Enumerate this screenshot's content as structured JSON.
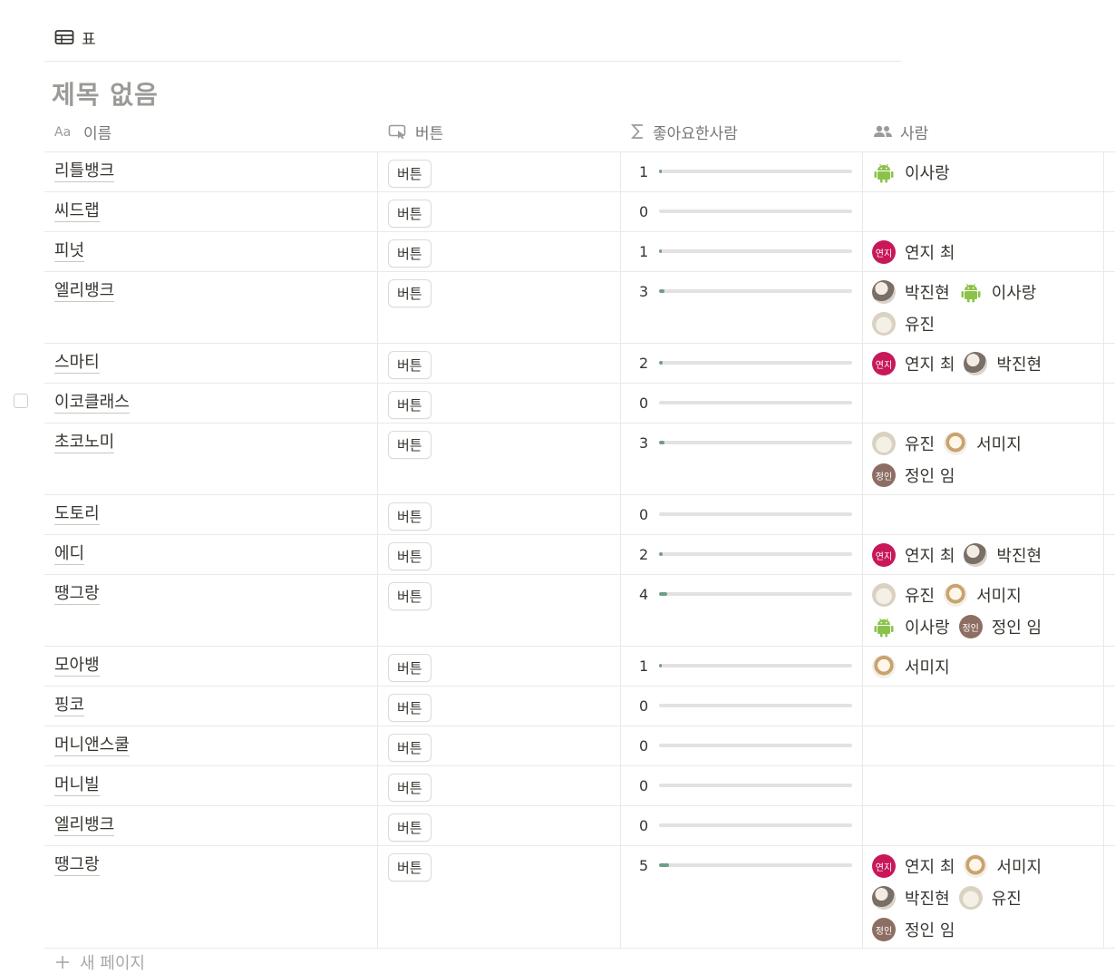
{
  "view": {
    "icon": "table-icon",
    "label": "표"
  },
  "db_title": "제목 없음",
  "columns": [
    {
      "icon": "title-property-icon",
      "label": "이름"
    },
    {
      "icon": "button-property-icon",
      "label": "버튼"
    },
    {
      "icon": "sigma-icon",
      "label": "좋아요한사람"
    },
    {
      "icon": "people-icon",
      "label": "사람"
    }
  ],
  "rows": [
    {
      "name": "리틀뱅크",
      "button": "버튼",
      "count": "1",
      "fill": 0.01,
      "people": [
        {
          "name": "이사랑",
          "avatar": "android"
        }
      ]
    },
    {
      "name": "씨드랩",
      "button": "버튼",
      "count": "0",
      "fill": 0,
      "people": []
    },
    {
      "name": "피넛",
      "button": "버튼",
      "count": "1",
      "fill": 0.01,
      "people": [
        {
          "name": "연지 최",
          "avatar": "choi",
          "badge": "연지"
        }
      ]
    },
    {
      "name": "엘리뱅크",
      "button": "버튼",
      "count": "3",
      "fill": 0.03,
      "people": [
        {
          "name": "박진현",
          "avatar": "park"
        },
        {
          "name": "이사랑",
          "avatar": "android"
        },
        {
          "name": "유진",
          "avatar": "yujin"
        }
      ]
    },
    {
      "name": "스마티",
      "button": "버튼",
      "count": "2",
      "fill": 0.02,
      "people": [
        {
          "name": "연지 최",
          "avatar": "choi",
          "badge": "연지"
        },
        {
          "name": "박진현",
          "avatar": "park"
        }
      ]
    },
    {
      "name": "이코클래스",
      "button": "버튼",
      "count": "0",
      "fill": 0,
      "people": []
    },
    {
      "name": "초코노미",
      "button": "버튼",
      "count": "3",
      "fill": 0.03,
      "people": [
        {
          "name": "유진",
          "avatar": "yujin"
        },
        {
          "name": "서미지",
          "avatar": "seo"
        },
        {
          "name": "정인 임",
          "avatar": "lim",
          "badge": "정인"
        }
      ]
    },
    {
      "name": "도토리",
      "button": "버튼",
      "count": "0",
      "fill": 0,
      "people": []
    },
    {
      "name": "에디",
      "button": "버튼",
      "count": "2",
      "fill": 0.02,
      "people": [
        {
          "name": "연지 최",
          "avatar": "choi",
          "badge": "연지"
        },
        {
          "name": "박진현",
          "avatar": "park"
        }
      ]
    },
    {
      "name": "땡그랑",
      "button": "버튼",
      "count": "4",
      "fill": 0.04,
      "people": [
        {
          "name": "유진",
          "avatar": "yujin"
        },
        {
          "name": "서미지",
          "avatar": "seo"
        },
        {
          "name": "이사랑",
          "avatar": "android"
        },
        {
          "name": "정인 임",
          "avatar": "lim",
          "badge": "정인"
        }
      ]
    },
    {
      "name": "모아뱅",
      "button": "버튼",
      "count": "1",
      "fill": 0.01,
      "people": [
        {
          "name": "서미지",
          "avatar": "seo"
        }
      ]
    },
    {
      "name": "핑코",
      "button": "버튼",
      "count": "0",
      "fill": 0,
      "people": []
    },
    {
      "name": "머니앤스쿨",
      "button": "버튼",
      "count": "0",
      "fill": 0,
      "people": []
    },
    {
      "name": "머니빌",
      "button": "버튼",
      "count": "0",
      "fill": 0,
      "people": []
    },
    {
      "name": "엘리뱅크",
      "button": "버튼",
      "count": "0",
      "fill": 0,
      "people": []
    },
    {
      "name": "땡그랑",
      "button": "버튼",
      "count": "5",
      "fill": 0.05,
      "people": [
        {
          "name": "연지 최",
          "avatar": "choi",
          "badge": "연지"
        },
        {
          "name": "서미지",
          "avatar": "seo"
        },
        {
          "name": "박진현",
          "avatar": "park"
        },
        {
          "name": "유진",
          "avatar": "yujin"
        },
        {
          "name": "정인 임",
          "avatar": "lim",
          "badge": "정인"
        }
      ]
    }
  ],
  "new_page_label": "새 페이지"
}
